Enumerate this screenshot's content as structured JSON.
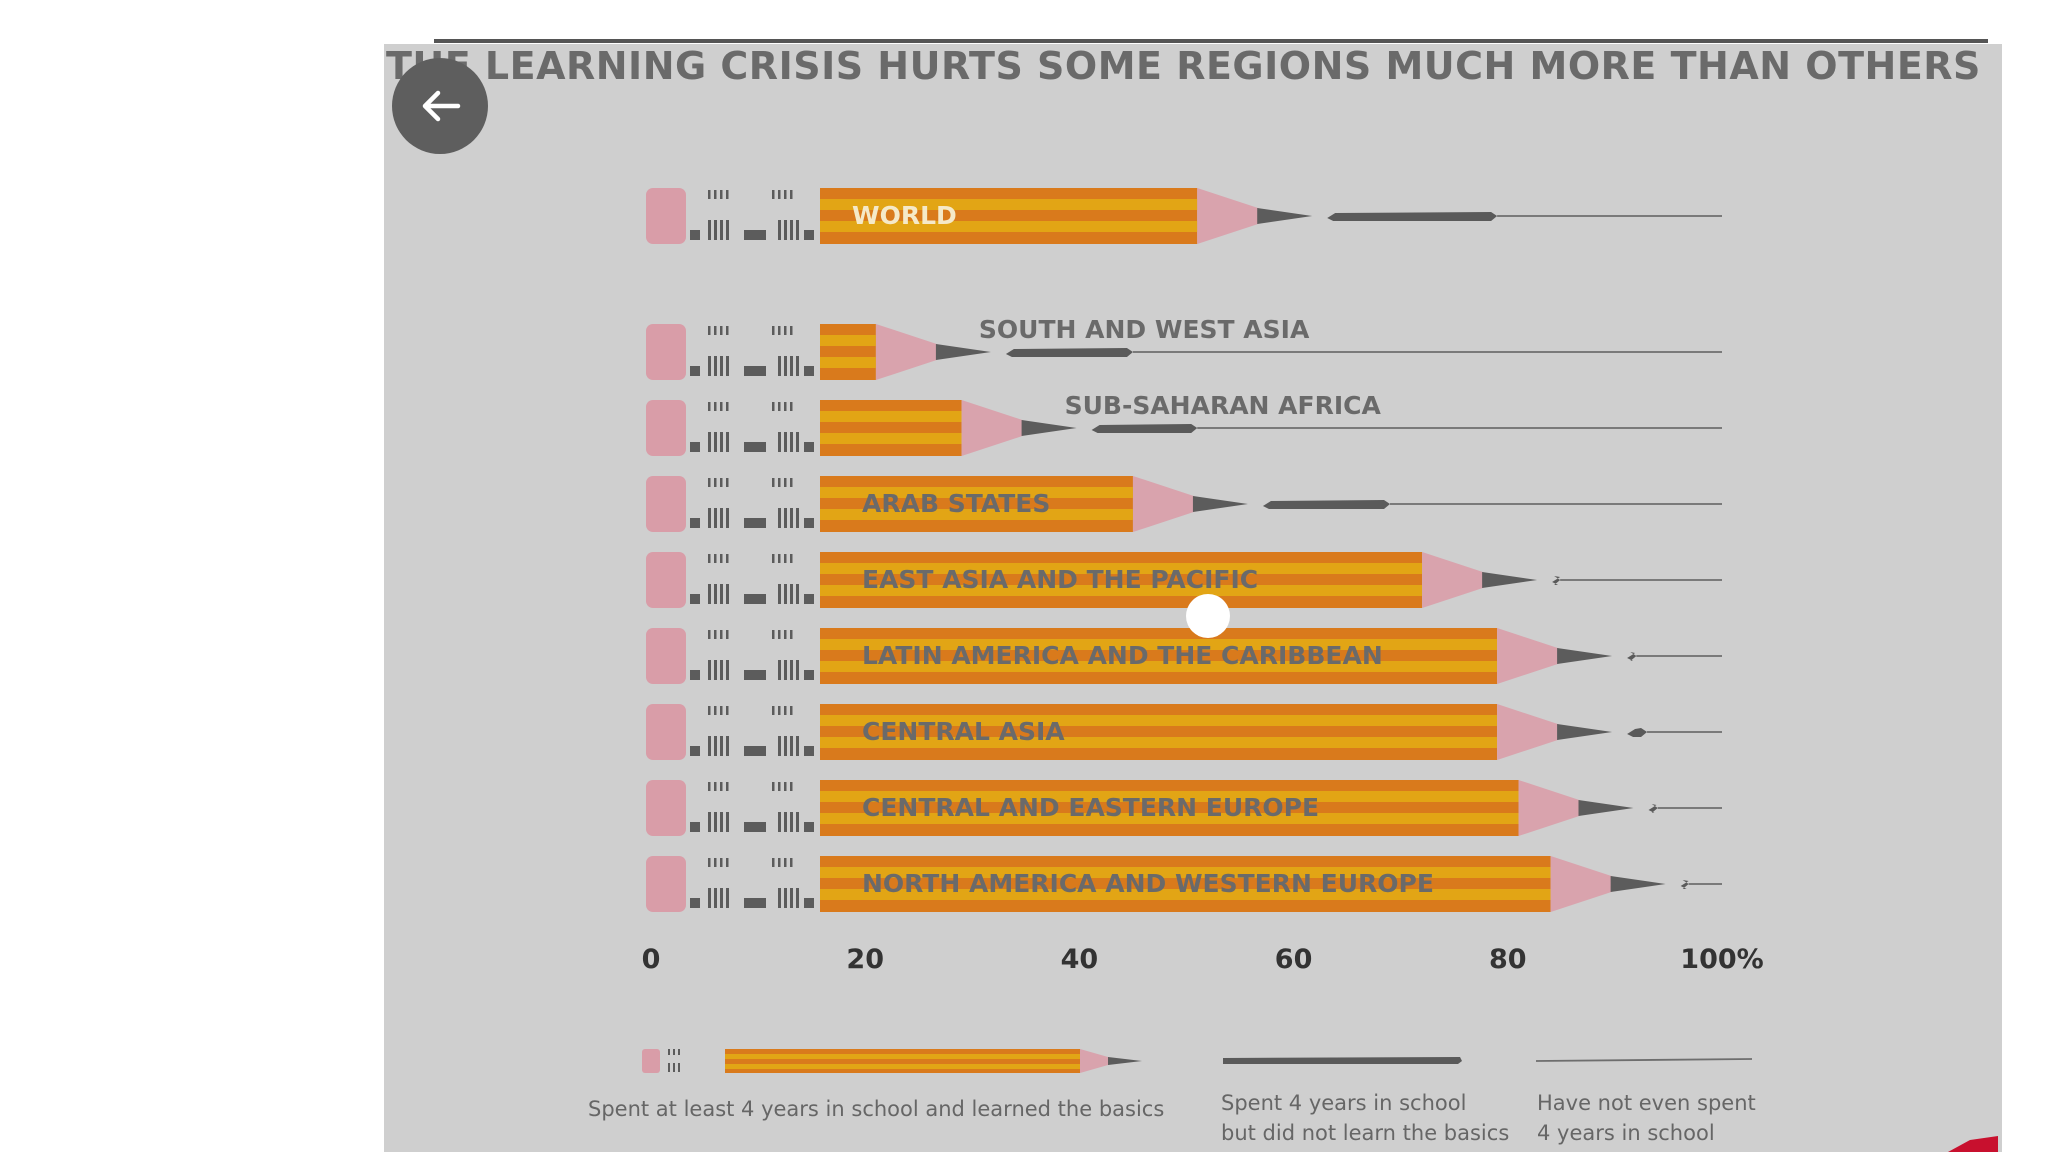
{
  "app": {
    "back_button_icon": "arrow-left-icon"
  },
  "colors": {
    "background": "#cfcfcf",
    "pencil_orange": "#d97a1c",
    "pencil_yellow": "#e2a515",
    "eraser_pink": "#d99da8",
    "tip_pink": "#d9a3ad",
    "lead_gray": "#5c5c5c",
    "text_gray": "#666666"
  },
  "chart_data": {
    "type": "bar",
    "title": "THE LEARNING CRISIS HURTS SOME REGIONS MUCH MORE THAN OTHERS",
    "xlabel": "",
    "ylabel": "",
    "xlim": [
      0,
      100
    ],
    "tick_labels": [
      "0",
      "20",
      "40",
      "60",
      "80",
      "100%"
    ],
    "ticks": [
      0,
      20,
      40,
      60,
      80,
      100
    ],
    "categories": [
      "WORLD",
      "SOUTH AND WEST ASIA",
      "SUB-SAHARAN AFRICA",
      "ARAB STATES",
      "EAST ASIA AND THE PACIFIC",
      "LATIN AMERICA AND THE CARIBBEAN",
      "CENTRAL ASIA",
      "CENTRAL AND EASTERN EUROPE",
      "NORTH AMERICA AND WESTERN EUROPE"
    ],
    "series": [
      {
        "name": "Spent at least 4 years in school and learned the basics",
        "values": [
          51,
          21,
          29,
          45,
          72,
          79,
          79,
          81,
          84
        ]
      },
      {
        "name": "Spent 4 years in school but did not learn the basics",
        "values": [
          28,
          24,
          22,
          24,
          11,
          13,
          14,
          13,
          12
        ]
      },
      {
        "name": "Have not even spent 4 years in school",
        "values": [
          21,
          55,
          49,
          31,
          17,
          8,
          7,
          6,
          4
        ]
      }
    ],
    "legend": {
      "placement": "bottom",
      "learned_basics": "Spent at least 4 years in school and learned the basics",
      "not_learned_line1": "Spent 4 years in school",
      "not_learned_line2": "but did not learn the basics",
      "not_in_school_line1": "Have not even spent",
      "not_in_school_line2": "4 years in school"
    }
  }
}
